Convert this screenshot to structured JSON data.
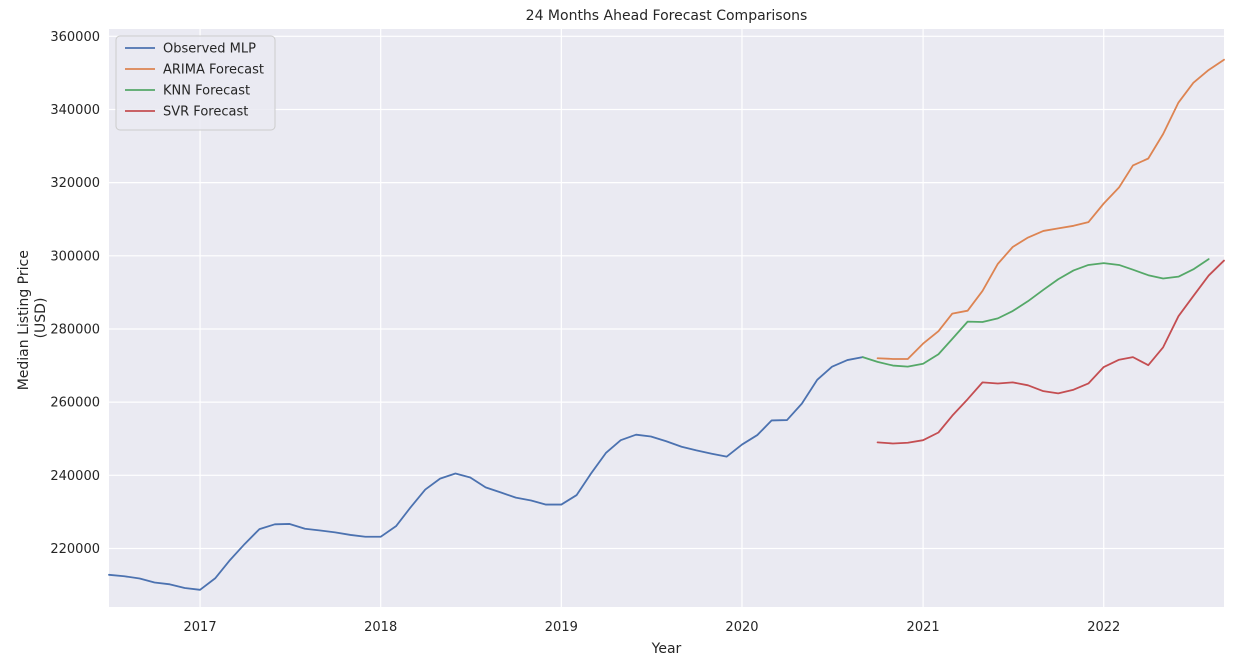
{
  "chart_data": {
    "type": "line",
    "title": "24 Months Ahead Forecast Comparisons",
    "xlabel": "Year",
    "ylabel_lines": [
      "Median Listing Price",
      "(USD)"
    ],
    "xlim": [
      "2016-07-01",
      "2022-09-01"
    ],
    "ylim": [
      204000,
      362000
    ],
    "x_ticks": [
      {
        "date": "2017-01-01",
        "label": "2017"
      },
      {
        "date": "2018-01-01",
        "label": "2018"
      },
      {
        "date": "2019-01-01",
        "label": "2019"
      },
      {
        "date": "2020-01-01",
        "label": "2020"
      },
      {
        "date": "2021-01-01",
        "label": "2021"
      },
      {
        "date": "2022-01-01",
        "label": "2022"
      }
    ],
    "y_ticks": [
      {
        "value": 220000,
        "label": "220000"
      },
      {
        "value": 240000,
        "label": "240000"
      },
      {
        "value": 260000,
        "label": "260000"
      },
      {
        "value": 280000,
        "label": "280000"
      },
      {
        "value": 300000,
        "label": "300000"
      },
      {
        "value": 320000,
        "label": "320000"
      },
      {
        "value": 340000,
        "label": "340000"
      },
      {
        "value": 360000,
        "label": "360000"
      }
    ],
    "grid": true,
    "legend_position": "top-left",
    "background": "#eaeaf2",
    "series": [
      {
        "name": "Observed MLP",
        "color": "#4c72b0",
        "start": "2016-07-01",
        "values": [
          212800,
          212400,
          211800,
          210700,
          210200,
          209200,
          208700,
          211900,
          216600,
          221200,
          225300,
          226600,
          226700,
          225400,
          224900,
          224400,
          223700,
          223200,
          223200,
          226100,
          231000,
          236100,
          239100,
          240500,
          239400,
          236700,
          235300,
          233900,
          233100,
          232000,
          232000,
          234600,
          240300,
          246100,
          249600,
          251100,
          250600,
          249300,
          247800,
          246800,
          245900,
          245100,
          248400,
          251000,
          255000,
          255100,
          259600,
          266100,
          269700,
          271500,
          272300
        ]
      },
      {
        "name": "ARIMA Forecast",
        "color": "#dd8452",
        "start": "2020-10-01",
        "values": [
          272000,
          271800,
          271800,
          276000,
          279400,
          284200,
          285000,
          290400,
          297800,
          302400,
          305000,
          306800,
          307500,
          308200,
          309200,
          314300,
          318700,
          324700,
          326600,
          333300,
          341900,
          347300,
          350800,
          353600
        ]
      },
      {
        "name": "KNN Forecast",
        "color": "#55a868",
        "start": "2020-09-01",
        "values": [
          272300,
          271000,
          270000,
          269700,
          270500,
          273100,
          277300,
          282000,
          281900,
          282900,
          284900,
          287600,
          290700,
          293600,
          296000,
          297500,
          298000,
          297500,
          296200,
          294700,
          293800,
          294300,
          296300,
          299100
        ]
      },
      {
        "name": "SVR Forecast",
        "color": "#c44e52",
        "start": "2020-10-01",
        "values": [
          249000,
          248700,
          248900,
          249600,
          251700,
          256300,
          260800,
          265400,
          265100,
          265400,
          264600,
          263000,
          262400,
          263400,
          265100,
          269600,
          271600,
          272300,
          270100,
          275000,
          283500,
          289000,
          294600,
          298700
        ]
      }
    ]
  }
}
